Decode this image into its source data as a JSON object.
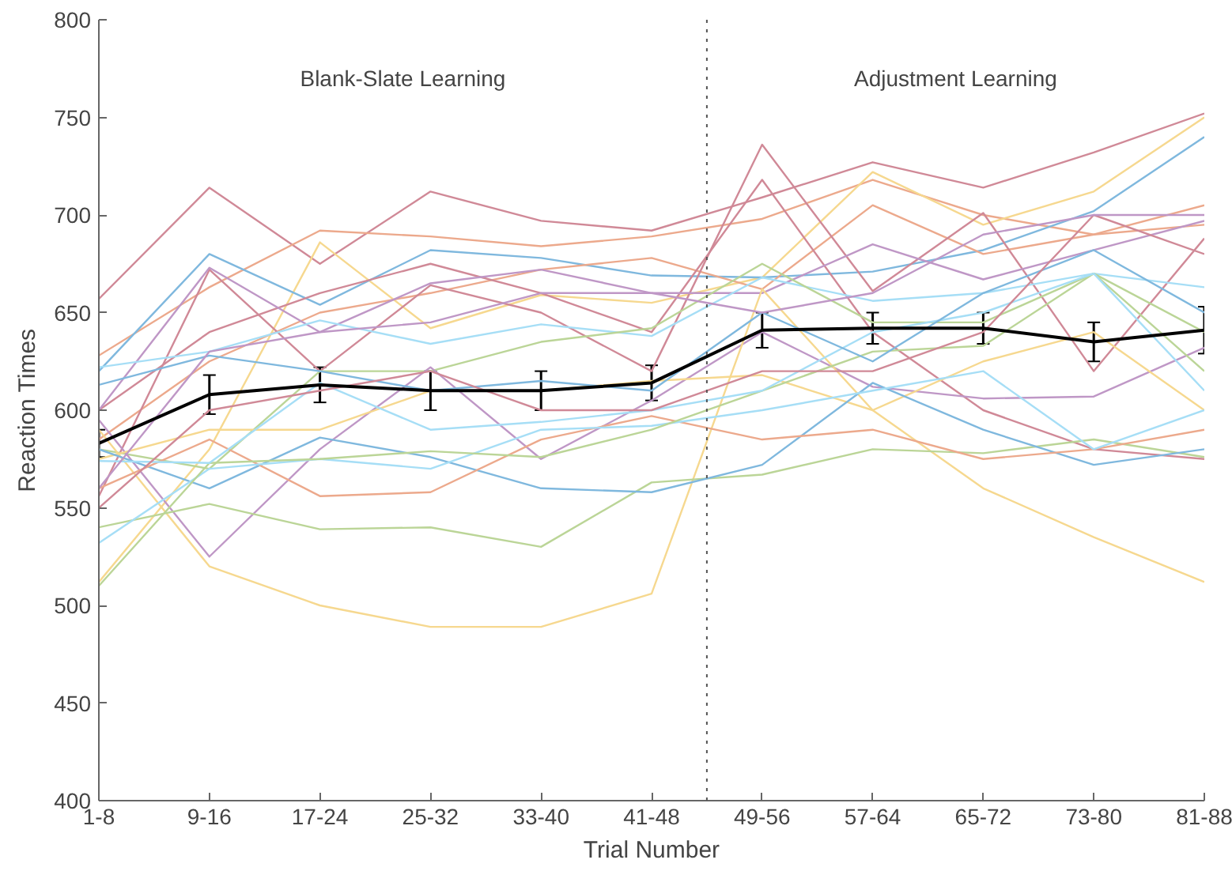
{
  "chart_data": {
    "type": "line",
    "xlabel": "Trial Number",
    "ylabel": "Reaction Times",
    "categories": [
      "1-8",
      "9-16",
      "17-24",
      "25-32",
      "33-40",
      "41-48",
      "49-56",
      "57-64",
      "65-72",
      "73-80",
      "81-88"
    ],
    "ylim": [
      400,
      800
    ],
    "yticks": [
      400,
      450,
      500,
      550,
      600,
      650,
      700,
      750,
      800
    ],
    "annotations": [
      "Blank-Slate Learning",
      "Adjustment Learning"
    ],
    "series": [
      {
        "color": "#d08997",
        "values": [
          657,
          714,
          675,
          712,
          697,
          692,
          709,
          727,
          714,
          732,
          752
        ]
      },
      {
        "color": "#eca98c",
        "values": [
          628,
          663,
          692,
          689,
          684,
          689,
          698,
          718,
          700,
          690,
          705
        ]
      },
      {
        "color": "#f6d88f",
        "values": [
          512,
          580,
          686,
          642,
          659,
          655,
          668,
          722,
          695,
          712,
          750
        ]
      },
      {
        "color": "#7fb8de",
        "values": [
          620,
          680,
          654,
          682,
          678,
          669,
          668,
          671,
          682,
          702,
          740
        ]
      },
      {
        "color": "#eca98c",
        "values": [
          585,
          625,
          650,
          660,
          672,
          678,
          662,
          705,
          680,
          690,
          695
        ]
      },
      {
        "color": "#d08997",
        "values": [
          556,
          672,
          620,
          664,
          650,
          620,
          736,
          661,
          701,
          620,
          688
        ]
      },
      {
        "color": "#d08997",
        "values": [
          600,
          640,
          660,
          675,
          660,
          640,
          718,
          640,
          600,
          580,
          575
        ]
      },
      {
        "color": "#bf97c6",
        "values": [
          600,
          673,
          640,
          665,
          672,
          660,
          660,
          685,
          667,
          682,
          697
        ]
      },
      {
        "color": "#a6def6",
        "values": [
          622,
          630,
          646,
          634,
          644,
          638,
          668,
          656,
          660,
          670,
          663
        ]
      },
      {
        "color": "#bbd597",
        "values": [
          580,
          570,
          620,
          620,
          635,
          642,
          675,
          645,
          645,
          670,
          640
        ]
      },
      {
        "color": "#bf97c6",
        "values": [
          595,
          525,
          580,
          622,
          575,
          605,
          640,
          612,
          606,
          607,
          632
        ]
      },
      {
        "color": "#f6d88f",
        "values": [
          590,
          520,
          500,
          489,
          489,
          506,
          662,
          600,
          625,
          640,
          600
        ]
      },
      {
        "color": "#f6d88f",
        "values": [
          575,
          590,
          590,
          610,
          610,
          615,
          618,
          600,
          560,
          535,
          512
        ]
      },
      {
        "color": "#bbd597",
        "values": [
          540,
          552,
          539,
          540,
          530,
          563,
          567,
          580,
          578,
          585,
          576
        ]
      },
      {
        "color": "#7fb8de",
        "values": [
          580,
          560,
          586,
          576,
          560,
          558,
          572,
          614,
          590,
          572,
          580
        ]
      },
      {
        "color": "#eca98c",
        "values": [
          560,
          585,
          556,
          558,
          585,
          597,
          585,
          590,
          575,
          580,
          590
        ]
      },
      {
        "color": "#a6def6",
        "values": [
          532,
          570,
          575,
          570,
          590,
          592,
          600,
          610,
          620,
          580,
          600
        ]
      },
      {
        "color": "#bbd597",
        "values": [
          510,
          573,
          575,
          579,
          576,
          590,
          610,
          630,
          633,
          670,
          620
        ]
      },
      {
        "color": "#a6def6",
        "values": [
          574,
          573,
          614,
          590,
          594,
          600,
          610,
          640,
          650,
          670,
          610
        ]
      },
      {
        "color": "#7fb8de",
        "values": [
          613,
          628,
          620,
          610,
          615,
          610,
          650,
          625,
          660,
          682,
          650
        ]
      },
      {
        "color": "#d08997",
        "values": [
          550,
          600,
          610,
          620,
          600,
          600,
          620,
          620,
          640,
          700,
          680
        ]
      },
      {
        "color": "#bf97c6",
        "values": [
          560,
          630,
          640,
          645,
          660,
          660,
          650,
          660,
          690,
          700,
          700
        ]
      },
      {
        "color": "#000000",
        "values": [
          583,
          608,
          613,
          610,
          610,
          614,
          641,
          642,
          642,
          635,
          641
        ],
        "errors": [
          7,
          10,
          9,
          10,
          10,
          9,
          9,
          8,
          8,
          10,
          12
        ]
      }
    ]
  }
}
